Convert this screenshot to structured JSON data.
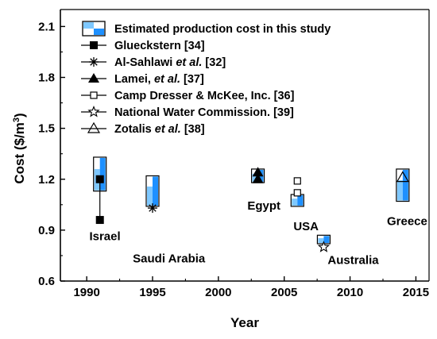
{
  "chart_data": {
    "type": "scatter",
    "xlabel": "Year",
    "ylabel": "Cost ($/m",
    "ylabel_sup": "3",
    "ylabel_close": ")",
    "xlim": [
      1988,
      2016
    ],
    "ylim": [
      0.6,
      2.2
    ],
    "xticks": [
      1990,
      1995,
      2000,
      2005,
      2010,
      2015
    ],
    "yticks": [
      0.6,
      0.9,
      1.2,
      1.5,
      1.8,
      2.1
    ],
    "ytick_labels": [
      "0.6",
      "0.9",
      "1.2",
      "1.5",
      "1.8",
      "2.1"
    ],
    "grid": false,
    "legend_position": "top-left",
    "colors": {
      "estimate_fill": "#1e90ff",
      "estimate_light": "#7ec8ff",
      "marker": "#000000"
    },
    "estimated_cost": {
      "name": "Estimated production cost in this study",
      "ranges": [
        {
          "x": 1991,
          "low": 1.13,
          "high": 1.33
        },
        {
          "x": 1995,
          "low": 1.04,
          "high": 1.22
        },
        {
          "x": 2003,
          "low": 1.18,
          "high": 1.26
        },
        {
          "x": 2006,
          "low": 1.04,
          "high": 1.11
        },
        {
          "x": 2008,
          "low": 0.82,
          "high": 0.87
        },
        {
          "x": 2014,
          "low": 1.07,
          "high": 1.26
        }
      ]
    },
    "series": [
      {
        "name": "Glueckstern [34]",
        "marker": "filled-square",
        "points": [
          [
            1991,
            1.2
          ],
          [
            1991,
            0.96
          ]
        ],
        "connected": true
      },
      {
        "name": "Al-Sahlawi et al. [32]",
        "marker": "asterisk",
        "points": [
          [
            1995,
            1.03
          ]
        ]
      },
      {
        "name": "Lamei, et al. [37]",
        "marker": "filled-triangle",
        "points": [
          [
            2003,
            1.24
          ],
          [
            2003,
            1.2
          ]
        ]
      },
      {
        "name": "Camp Dresser & McKee, Inc. [36]",
        "marker": "open-square",
        "points": [
          [
            2006,
            1.19
          ],
          [
            2006,
            1.12
          ]
        ]
      },
      {
        "name": "National Water Commission. [39]",
        "marker": "open-star",
        "points": [
          [
            2008,
            0.8
          ]
        ]
      },
      {
        "name": "Zotalis et al. [38]",
        "marker": "open-triangle",
        "points": [
          [
            2014,
            1.21
          ]
        ]
      }
    ],
    "legend": [
      {
        "marker": "estimate-box",
        "parts": [
          [
            "Estimated production cost in this study",
            false
          ]
        ]
      },
      {
        "marker": "filled-square",
        "parts": [
          [
            "Glueckstern [34]",
            false
          ]
        ]
      },
      {
        "marker": "asterisk",
        "parts": [
          [
            "Al-Sahlawi ",
            false
          ],
          [
            "et al.",
            true
          ],
          [
            " [32]",
            false
          ]
        ]
      },
      {
        "marker": "filled-triangle",
        "parts": [
          [
            "Lamei, ",
            false
          ],
          [
            "et al.",
            true
          ],
          [
            " [37]",
            false
          ]
        ]
      },
      {
        "marker": "open-square",
        "parts": [
          [
            "Camp Dresser & McKee, Inc. [36]",
            false
          ]
        ]
      },
      {
        "marker": "open-star",
        "parts": [
          [
            "National Water Commission. [39]",
            false
          ]
        ]
      },
      {
        "marker": "open-triangle",
        "parts": [
          [
            "Zotalis ",
            false
          ],
          [
            "et al.",
            true
          ],
          [
            " [38]",
            false
          ]
        ]
      }
    ],
    "annotations": [
      {
        "text": "Israel",
        "x": 1990.2,
        "y": 0.84
      },
      {
        "text": "Saudi Arabia",
        "x": 1993.5,
        "y": 0.71
      },
      {
        "text": "Egypt",
        "x": 2002.2,
        "y": 1.02
      },
      {
        "text": "USA",
        "x": 2005.7,
        "y": 0.9
      },
      {
        "text": "Australia",
        "x": 2008.3,
        "y": 0.7
      },
      {
        "text": "Greece",
        "x": 2012.8,
        "y": 0.93
      }
    ]
  }
}
